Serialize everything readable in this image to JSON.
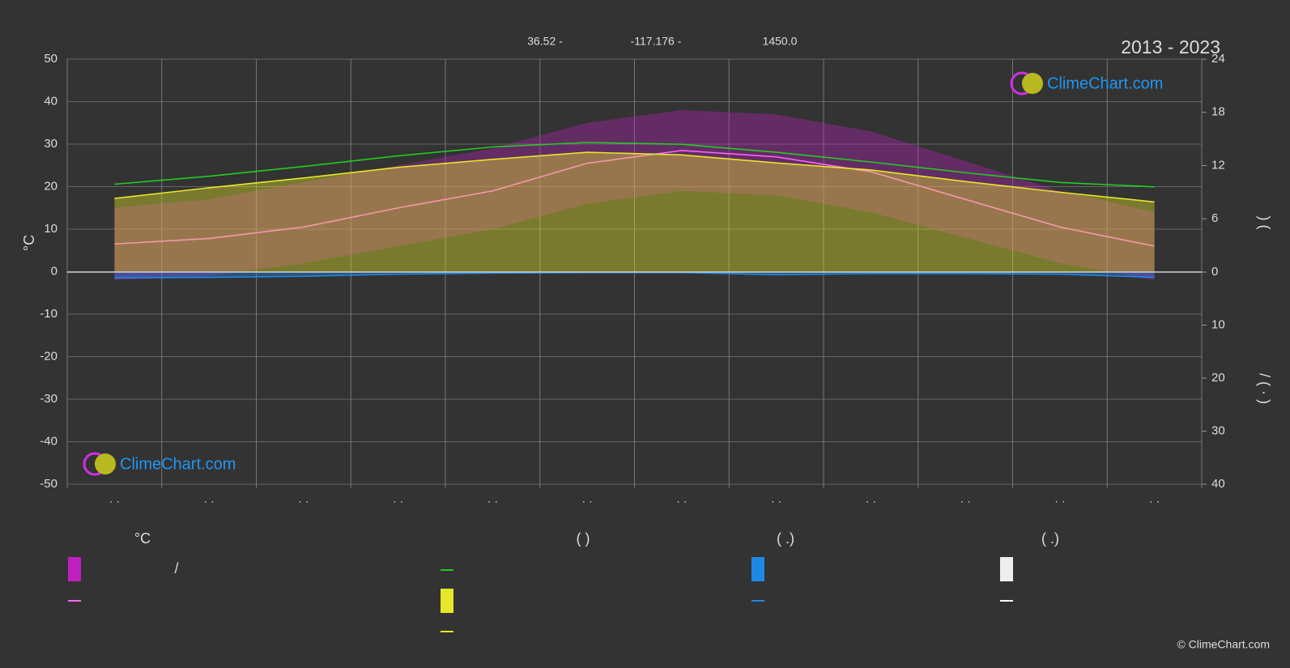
{
  "chart_data": {
    "type": "climate",
    "title": "2013 - 2023",
    "location": [
      "36.52 -",
      "-117.176 -",
      "1450.0"
    ],
    "y_label": "°C",
    "y2_label": ")    (",
    "y3_label": "/    ( · )",
    "brand": "ClimeChart.com",
    "copyright": "© ClimeChart.com",
    "categories": [
      "· ·",
      "· ·",
      "· ·",
      "· ·",
      "· ·",
      "· ·",
      "· ·",
      "· ·",
      "· ·",
      "· ·",
      "· ·",
      "· ·"
    ],
    "ylim": [
      -50,
      50
    ],
    "yticks": [
      -50,
      -40,
      -30,
      -20,
      -10,
      0,
      10,
      20,
      30,
      40,
      50
    ],
    "y2lim": [
      0,
      24
    ],
    "y2ticks": [
      0,
      6,
      12,
      18,
      24
    ],
    "y3lim": [
      0,
      40
    ],
    "y3ticks": [
      10,
      20,
      30,
      40
    ],
    "grid": true,
    "temp_max": {
      "color": "#c020c0",
      "values": [
        15,
        17,
        21,
        25,
        29,
        35,
        38,
        37,
        33,
        26,
        19,
        14
      ]
    },
    "temp_min": {
      "color": "#c020c0",
      "values": [
        -2,
        -1,
        2,
        6,
        10,
        16,
        19,
        18,
        14,
        8,
        2,
        -2
      ]
    },
    "series": [
      {
        "color": "#ff66ff",
        "axis": "y",
        "values": [
          6.5,
          7.8,
          10.5,
          15,
          19,
          25.5,
          28.5,
          27,
          23.5,
          17,
          10.5,
          6
        ]
      },
      {
        "color": "#22cc22",
        "axis": "y2",
        "values": [
          9.9,
          10.8,
          11.9,
          13.1,
          14.1,
          14.6,
          14.4,
          13.5,
          12.4,
          11.2,
          10.1,
          9.6
        ]
      },
      {
        "color": "#e6e62a",
        "axis": "y2",
        "fill": true,
        "values": [
          8.3,
          9.5,
          10.6,
          11.8,
          12.7,
          13.5,
          13.2,
          12.3,
          11.5,
          10.2,
          9.0,
          7.9
        ]
      },
      {
        "color": "#1e88e5",
        "axis": "y3",
        "values": [
          1.1,
          1.0,
          0.8,
          0.4,
          0.2,
          0.1,
          0.1,
          0.5,
          0.3,
          0.3,
          0.4,
          1.0
        ]
      }
    ],
    "legend": {
      "headers": [
        "°C",
        "(          )",
        "(   .)",
        "(   .)"
      ],
      "slash": "/"
    }
  }
}
